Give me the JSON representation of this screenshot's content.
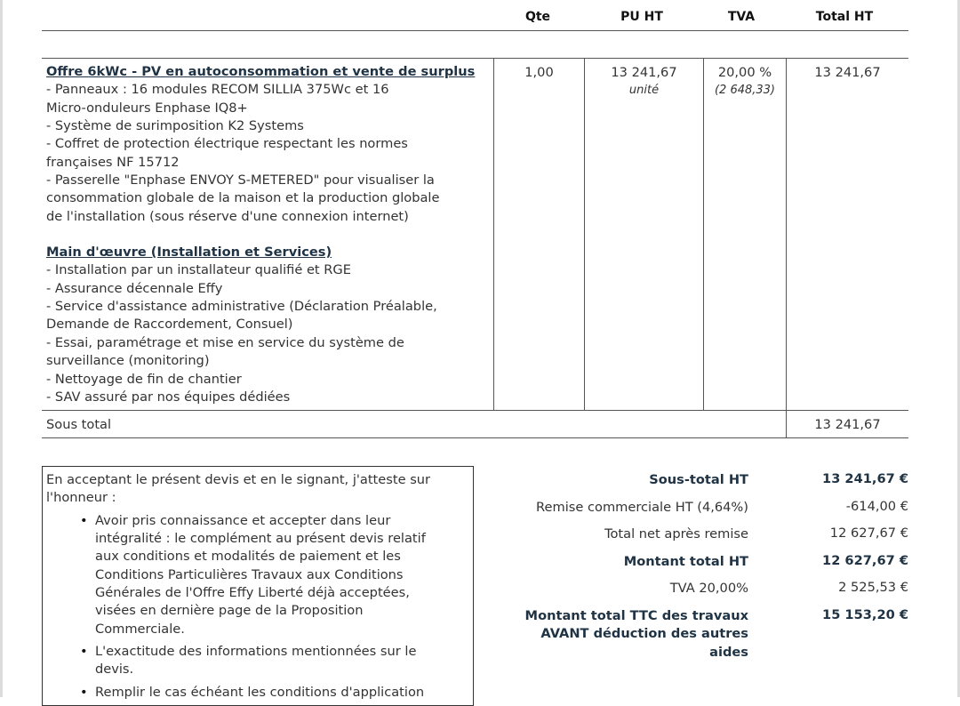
{
  "table": {
    "headers": {
      "qte": "Qte",
      "pu_ht": "PU HT",
      "tva": "TVA",
      "total_ht": "Total HT"
    },
    "row": {
      "title1": "Offre 6kWc - PV en autoconsommation et vente de surplus",
      "lines1": [
        "- Panneaux : 16 modules RECOM SILLIA 375Wc et 16",
        "Micro-onduleurs Enphase IQ8+",
        "- Système de surimposition K2 Systems",
        "- Coffret de protection électrique respectant les normes",
        "françaises NF 15712",
        "- Passerelle \"Enphase ENVOY S-METERED\" pour visualiser la",
        "consommation globale de la maison et la production globale",
        "de l'installation (sous réserve d'une connexion internet)"
      ],
      "title2": "Main d'œuvre (Installation et Services)",
      "lines2": [
        "- Installation par un installateur qualifié et RGE",
        "- Assurance décennale Effy",
        "- Service d'assistance administrative (Déclaration Préalable,",
        "Demande de Raccordement, Consuel)",
        "- Essai, paramétrage et mise en service du système de",
        "surveillance (monitoring)",
        "- Nettoyage de fin de chantier",
        "- SAV assuré par nos équipes dédiées"
      ],
      "qte": "1,00",
      "pu_ht": "13 241,67",
      "unit": "unité",
      "tva_rate": "20,00 %",
      "tva_amount": "(2 648,33)",
      "total_ht": "13 241,67"
    },
    "subtotal": {
      "label": "Sous total",
      "value": "13 241,67"
    }
  },
  "attestation": {
    "intro": [
      "En acceptant le présent devis et en le signant, j'atteste sur",
      "l'honneur :"
    ],
    "bullets": [
      [
        "Avoir pris connaissance et accepter dans leur",
        "intégralité : le complément au présent devis relatif",
        "aux conditions et modalités de paiement et les",
        "Conditions Particulières Travaux aux Conditions",
        "Générales de l'Offre Effy Liberté déjà acceptées,",
        "visées en dernière page de la Proposition",
        "Commerciale."
      ],
      [
        "L'exactitude des informations mentionnées sur le",
        "devis."
      ],
      [
        "Remplir le cas échéant les conditions d'application"
      ]
    ]
  },
  "totals": [
    {
      "label": "Sous-total HT",
      "value": "13 241,67 €",
      "bold": true
    },
    {
      "label": "Remise commerciale HT (4,64%)",
      "value": "-614,00 €",
      "bold": false
    },
    {
      "label": "Total net après remise",
      "value": "12 627,67 €",
      "bold": false
    },
    {
      "label": "Montant total HT",
      "value": "12 627,67 €",
      "bold": true
    },
    {
      "label": "TVA 20,00%",
      "value": "2 525,53 €",
      "bold": false
    },
    {
      "label_lines": [
        "Montant total TTC des travaux",
        "AVANT déduction des autres",
        "aides"
      ],
      "value": "15 153,20 €",
      "bold": true
    }
  ]
}
